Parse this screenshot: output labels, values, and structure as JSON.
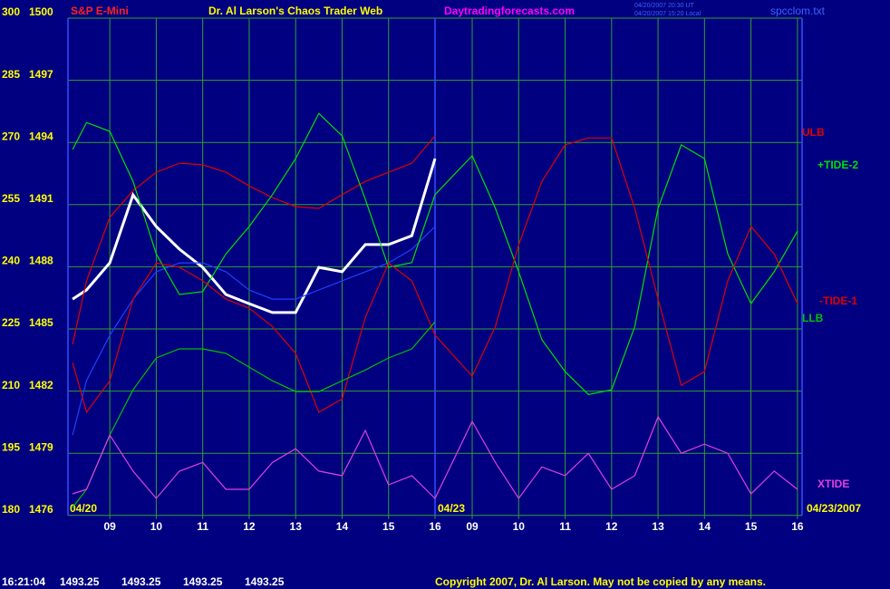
{
  "chart_data": {
    "type": "line",
    "symbol": "S&P E-Mini",
    "title": "Dr. Al Larson's Chaos Trader Web",
    "site": "Daytradingforecasts.com",
    "stamp_lines": [
      "04/20/2007 20:30 UT",
      "04/20/2007 15:20 Local"
    ],
    "file": "spcclom.txt",
    "date_labels": [
      "04/20",
      "04/23",
      "04/23/2007"
    ],
    "x": [
      8.2,
      8.5,
      9,
      9.5,
      10,
      10.5,
      11,
      11.5,
      12,
      12.5,
      13,
      13.5,
      14,
      14.5,
      15,
      15.5,
      16,
      16.8,
      17.3,
      17.8,
      18.3,
      18.8,
      19.3,
      19.8,
      20.3,
      20.8,
      21.3,
      21.8,
      22.3,
      22.8,
      23.3,
      23.8
    ],
    "xlim": [
      8.1,
      23.9
    ],
    "xticks": [
      {
        "value": 9,
        "label": "09"
      },
      10,
      11,
      12,
      13,
      14,
      15,
      16,
      {
        "value": 16.8,
        "label": "09"
      },
      {
        "value": 17.8,
        "label": "10"
      },
      {
        "value": 18.8,
        "label": "11"
      },
      {
        "value": 19.8,
        "label": "12"
      },
      {
        "value": 20.8,
        "label": "13"
      },
      {
        "value": 21.8,
        "label": "14"
      },
      {
        "value": 22.8,
        "label": "15"
      },
      {
        "value": 23.8,
        "label": "16"
      }
    ],
    "ylim": [
      180,
      300
    ],
    "yticks": [
      180,
      195,
      210,
      225,
      240,
      255,
      270,
      285,
      300
    ],
    "y2lim": [
      1476,
      1500
    ],
    "y2ticks": [
      1476,
      1479,
      1482,
      1485,
      1488,
      1491,
      1494,
      1497,
      1500
    ],
    "grid": true,
    "series": [
      {
        "color": "#ffffff",
        "axis": "y2",
        "values": [
          1486.44,
          1486.88,
          1488.19,
          1491.47,
          1489.94,
          1488.85,
          1487.97,
          1486.66,
          1486.22,
          1485.79,
          1485.79,
          1487.97,
          1487.76,
          1489.07,
          1489.07,
          1489.5,
          1493.22,
          null,
          null,
          null,
          null,
          null,
          null,
          null,
          null,
          null,
          null,
          null,
          null,
          null,
          null,
          null
        ]
      },
      {
        "color": "#2040ff",
        "axis": "y2",
        "values": [
          1479.88,
          1482.51,
          1484.69,
          1486.44,
          1487.76,
          1488.19,
          1488.19,
          1487.76,
          1486.88,
          1486.44,
          1486.44,
          1486.88,
          1487.32,
          1487.76,
          1488.19,
          1488.85,
          1489.94,
          null,
          null,
          null,
          null,
          null,
          null,
          null,
          null,
          null,
          null,
          null,
          null,
          null,
          null,
          null
        ]
      },
      {
        "name": "ULB",
        "color": "#e00000",
        "values": [
          221.3,
          236.6,
          251.9,
          258.4,
          262.8,
          265.0,
          264.6,
          262.8,
          259.5,
          256.7,
          254.5,
          254.1,
          257.4,
          260.6,
          262.8,
          265.0,
          271.6,
          null,
          null,
          null,
          null,
          null,
          null,
          null,
          null,
          null,
          null,
          null,
          null,
          null,
          null,
          null
        ]
      },
      {
        "name": "+TIDE-2",
        "color": "#00e000",
        "values": [
          268.3,
          274.8,
          272.7,
          260.6,
          243.1,
          233.3,
          234.0,
          243.1,
          249.7,
          257.4,
          266.1,
          277.0,
          271.6,
          256.3,
          239.9,
          241.0,
          257.4,
          266.8,
          254.1,
          238.8,
          222.4,
          214.7,
          209.2,
          210.3,
          225.6,
          254.1,
          269.4,
          266.1,
          243.1,
          231.1,
          238.8,
          248.6
        ]
      },
      {
        "name": "-TIDE-1",
        "color": "#e00000",
        "values": [
          216.9,
          204.9,
          212.5,
          232.2,
          240.9,
          239.9,
          236.6,
          232.2,
          230.0,
          225.6,
          219.1,
          204.9,
          208.1,
          227.8,
          240.9,
          236.6,
          223.5,
          213.6,
          225.6,
          245.3,
          260.6,
          269.4,
          271.1,
          271.1,
          254.1,
          232.2,
          211.4,
          214.7,
          236.6,
          249.7,
          243.1,
          231.1
        ]
      },
      {
        "name": "LLB",
        "color": "#00c000",
        "values": [
          181.9,
          186.3,
          199.4,
          210.3,
          218.0,
          220.2,
          220.2,
          219.1,
          215.8,
          212.5,
          209.9,
          209.9,
          212.5,
          215.1,
          218.0,
          220.2,
          226.7,
          null,
          null,
          null,
          null,
          null,
          null,
          null,
          null,
          null,
          null,
          null,
          null,
          null,
          null,
          null
        ]
      },
      {
        "name": "XTIDE",
        "color": "#e040e0",
        "values": [
          185.2,
          186.3,
          199.4,
          190.7,
          184.1,
          190.7,
          192.8,
          186.3,
          186.3,
          192.8,
          196.1,
          190.7,
          189.6,
          200.5,
          187.4,
          189.6,
          184.1,
          202.7,
          192.8,
          184.1,
          191.7,
          189.6,
          195.0,
          186.3,
          189.6,
          203.8,
          195.0,
          197.2,
          195.0,
          185.2,
          190.7,
          186.3
        ]
      }
    ]
  },
  "status": {
    "time": "16:21:04",
    "values": [
      1493.25,
      1493.25,
      1493.25,
      1493.25
    ]
  },
  "copyright": "Copyright 2007, Dr. Al Larson. May not be copied by any means."
}
